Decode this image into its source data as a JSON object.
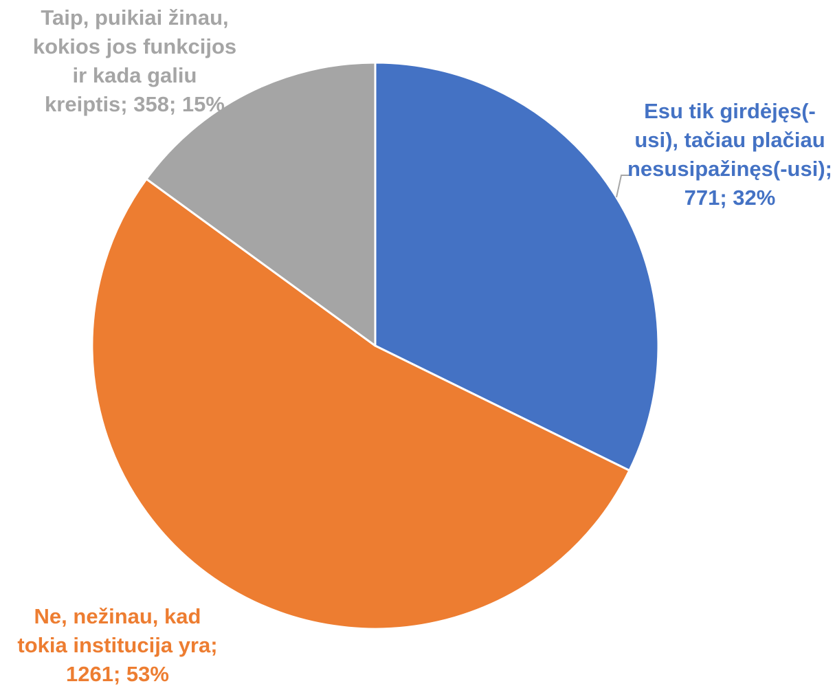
{
  "chart_data": {
    "type": "pie",
    "title": "",
    "slices": [
      {
        "label": "Esu tik girdėjęs(-usi), tačiau plačiau nesusipažinęs(-usi)",
        "label_lines": [
          "Esu tik girdėjęs(-",
          "usi), tačiau plačiau",
          "nesusipažinęs(-usi);",
          "771; 32%"
        ],
        "value": 771,
        "percent": 32,
        "color": "#4472C4"
      },
      {
        "label": "Ne, nežinau, kad tokia institucija yra",
        "label_lines": [
          "Ne, nežinau, kad",
          "tokia institucija yra;",
          "1261; 53%"
        ],
        "value": 1261,
        "percent": 53,
        "color": "#ED7D31"
      },
      {
        "label": "Taip, puikiai žinau, kokios jos funkcijos ir kada galiu kreiptis",
        "label_lines": [
          "Taip, puikiai žinau,",
          "kokios jos funkcijos",
          "ir kada galiu",
          "kreiptis; 358; 15%"
        ],
        "value": 358,
        "percent": 15,
        "color": "#A5A5A5"
      }
    ],
    "start_angle": "12 o'clock",
    "direction": "clockwise",
    "legend": "none",
    "data_labels": "category; value; percent"
  }
}
